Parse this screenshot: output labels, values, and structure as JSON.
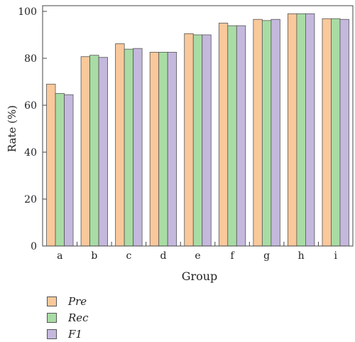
{
  "chart_data": {
    "type": "bar",
    "xlabel": "Group",
    "ylabel": "Rate (%)",
    "ylim": [
      0,
      100
    ],
    "yticks": [
      0,
      20,
      40,
      60,
      80,
      100
    ],
    "grid": false,
    "legend_placement": "bottom-left",
    "categories": [
      "a",
      "b",
      "c",
      "d",
      "e",
      "f",
      "g",
      "h",
      "i"
    ],
    "series": [
      {
        "name": "Pre",
        "color": "#f9c89b",
        "values": [
          69,
          80.7,
          86.2,
          82.6,
          90.5,
          95.0,
          96.6,
          99.0,
          96.9
        ]
      },
      {
        "name": "Rec",
        "color": "#a9dca4",
        "values": [
          65,
          81.3,
          83.9,
          82.6,
          90.0,
          93.9,
          96.1,
          99.0,
          96.9
        ]
      },
      {
        "name": "F1",
        "color": "#c4b8dd",
        "values": [
          64.5,
          80.4,
          84.2,
          82.6,
          90.0,
          93.9,
          96.6,
          99.0,
          96.6
        ]
      }
    ]
  }
}
